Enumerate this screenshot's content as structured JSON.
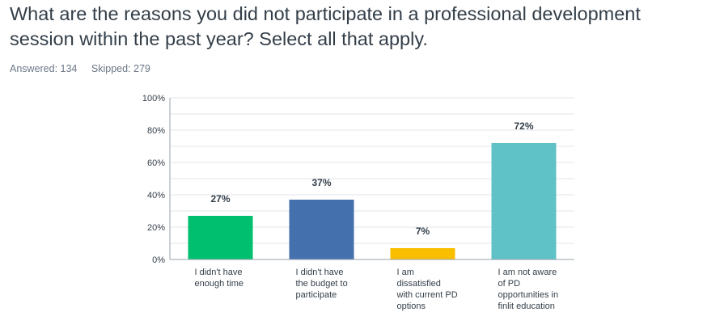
{
  "title": "What are the reasons you did not participate in a professional development session within the past year?  Select all that apply.",
  "stats": {
    "answered": "Answered: 134",
    "skipped": "Skipped: 279"
  },
  "colors": {
    "grid": "#e3e6ea",
    "axis": "#9aa3ad",
    "text": "#333e48"
  },
  "chart_data": {
    "type": "bar",
    "categories": [
      [
        "I didn't have",
        "enough time"
      ],
      [
        "I didn't have",
        "the budget to",
        "participate"
      ],
      [
        "I am",
        "dissatisfied",
        "with current PD",
        "options"
      ],
      [
        "I am not aware",
        "of PD",
        "opportunities in",
        "finlit education"
      ]
    ],
    "values": [
      27,
      37,
      7,
      72
    ],
    "data_labels": [
      "27%",
      "37%",
      "7%",
      "72%"
    ],
    "bar_colors": [
      "#00bf6f",
      "#4570ae",
      "#f9be00",
      "#5fc2c6"
    ],
    "ylim": [
      0,
      100
    ],
    "yticks": [
      0,
      20,
      40,
      60,
      80,
      100
    ],
    "ytick_labels": [
      "0%",
      "20%",
      "40%",
      "60%",
      "80%",
      "100%"
    ],
    "minor_grid_step": 10,
    "grid": true,
    "xlabel": "",
    "ylabel": ""
  }
}
